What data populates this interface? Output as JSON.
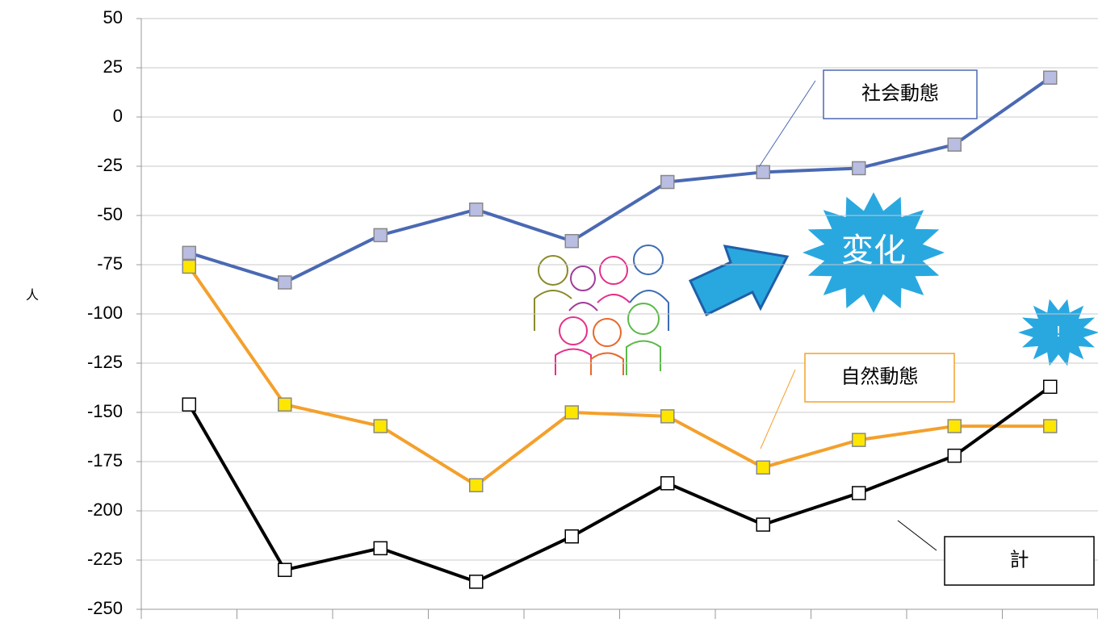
{
  "chart_data": {
    "type": "line",
    "y_label": "人",
    "categories": [
      null,
      null,
      null,
      null,
      null,
      null,
      null,
      null,
      null,
      null
    ],
    "series": [
      {
        "name": "社会動態",
        "color": "#4a69b3",
        "marker_color": "#b9bde2",
        "values": [
          -69,
          -84,
          -60,
          -47,
          -63,
          -33,
          -28,
          -26,
          -14,
          20
        ]
      },
      {
        "name": "自然動態",
        "color": "#f4a02c",
        "marker_color": "#ffe600",
        "values": [
          -76,
          -146,
          -157,
          -187,
          -150,
          -152,
          -178,
          -164,
          -157,
          -157
        ]
      },
      {
        "name": "計",
        "color": "#000000",
        "marker_color": "#ffffff",
        "values": [
          -146,
          -230,
          -219,
          -236,
          -213,
          -186,
          -207,
          -191,
          -172,
          -137
        ]
      }
    ],
    "annotations": [
      "変化",
      "!"
    ],
    "ylim": [
      -250,
      50
    ],
    "yticks": [
      -250,
      -225,
      -200,
      -175,
      -150,
      -125,
      -100,
      -75,
      -50,
      -25,
      0,
      25,
      50
    ],
    "grid": true
  }
}
